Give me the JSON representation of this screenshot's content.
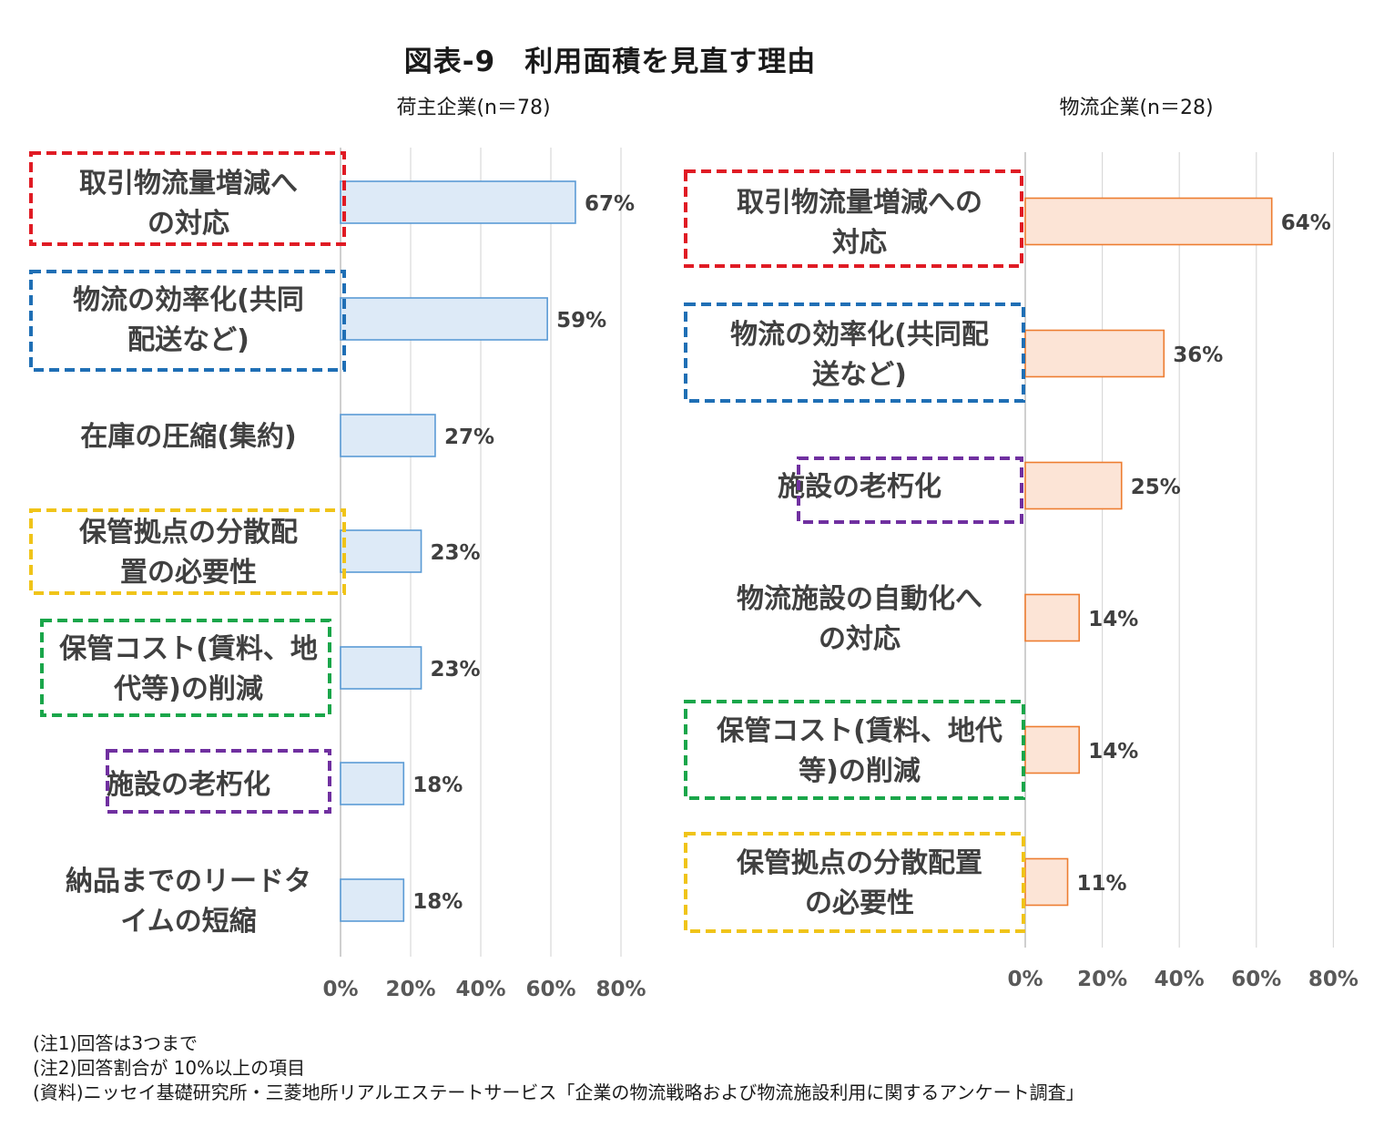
{
  "title": "図表-9　利用面積を見直す理由",
  "chart_data": [
    {
      "type": "bar",
      "orientation": "horizontal",
      "subtitle": "荷主企業(n＝78)",
      "categories": [
        "取引物流量増減への対応",
        "物流の効率化(共同配送など)",
        "在庫の圧縮(集約)",
        "保管拠点の分散配置の必要性",
        "保管コスト(賃料、地代等)の削減",
        "施設の老朽化",
        "納品までのリードタイムの短縮"
      ],
      "values": [
        67,
        59,
        27,
        23,
        23,
        18,
        18
      ],
      "value_labels": [
        "67%",
        "59%",
        "27%",
        "23%",
        "23%",
        "18%",
        "18%"
      ],
      "highlight_colors": [
        "#e01b24",
        "#1f6fb5",
        null,
        "#f0c419",
        "#1aa64a",
        "#7030a0",
        null
      ],
      "xlim": [
        0,
        80
      ],
      "xticks": [
        "0%",
        "20%",
        "40%",
        "60%",
        "80%"
      ],
      "grid": true,
      "bar_fill": "#ddeaf7",
      "bar_stroke": "#5b9bd5"
    },
    {
      "type": "bar",
      "orientation": "horizontal",
      "subtitle": "物流企業(n＝28)",
      "categories": [
        "取引物流量増減への対応",
        "物流の効率化(共同配送など)",
        "施設の老朽化",
        "物流施設の自動化への対応",
        "保管コスト(賃料、地代等)の削減",
        "保管拠点の分散配置の必要性"
      ],
      "values": [
        64,
        36,
        25,
        14,
        14,
        11
      ],
      "value_labels": [
        "64%",
        "36%",
        "25%",
        "14%",
        "14%",
        "11%"
      ],
      "highlight_colors": [
        "#e01b24",
        "#1f6fb5",
        "#7030a0",
        null,
        "#1aa64a",
        "#f0c419"
      ],
      "xlim": [
        0,
        80
      ],
      "xticks": [
        "0%",
        "20%",
        "40%",
        "60%",
        "80%"
      ],
      "grid": true,
      "bar_fill": "#fce4d6",
      "bar_stroke": "#ed7d31"
    }
  ],
  "notes": [
    "(注1)回答は3つまで",
    "(注2)回答割合が 10%以上の項目",
    "(資料)ニッセイ基礎研究所・三菱地所リアルエステートサービス「企業の物流戦略および物流施設利用に関するアンケート調査」"
  ]
}
